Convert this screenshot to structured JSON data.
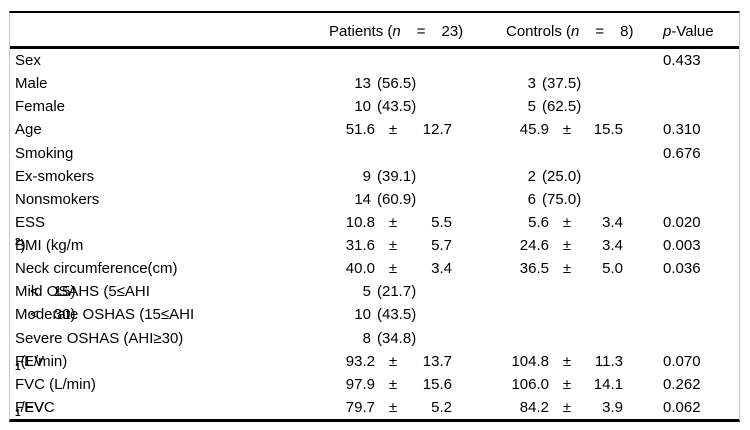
{
  "table": {
    "header": {
      "patients": {
        "prefix": "Patients (",
        "n": "n",
        "eq": "=",
        "count": "23)"
      },
      "controls": {
        "prefix": "Controls (",
        "n": "n",
        "eq": "=",
        "count": "8)"
      },
      "pvalue": {
        "p": "p",
        "suffix": "-Value"
      }
    },
    "rows": [
      {
        "label": [
          {
            "t": "Sex"
          }
        ],
        "p": "0.433"
      },
      {
        "label": [
          {
            "t": "Male"
          }
        ],
        "patients": {
          "n": "13",
          "pct": "(56.5)"
        },
        "controls": {
          "n": "3",
          "pct": "(37.5)"
        }
      },
      {
        "label": [
          {
            "t": "Female"
          }
        ],
        "patients": {
          "n": "10",
          "pct": "(43.5)"
        },
        "controls": {
          "n": "5",
          "pct": "(62.5)"
        }
      },
      {
        "label": [
          {
            "t": "Age"
          }
        ],
        "patients": {
          "mean": "51.6",
          "pm": "±",
          "sd": "12.7"
        },
        "controls": {
          "mean": "45.9",
          "pm": "±",
          "sd": "15.5"
        },
        "p": "0.310"
      },
      {
        "label": [
          {
            "t": "Smoking"
          }
        ],
        "p": "0.676"
      },
      {
        "label": [
          {
            "t": "Ex-smokers"
          }
        ],
        "patients": {
          "n": "9",
          "pct": "(39.1)"
        },
        "controls": {
          "n": "2",
          "pct": "(25.0)"
        }
      },
      {
        "label": [
          {
            "t": "Nonsmokers"
          }
        ],
        "patients": {
          "n": "14",
          "pct": "(60.9)"
        },
        "controls": {
          "n": "6",
          "pct": "(75.0)"
        }
      },
      {
        "label": [
          {
            "t": "ESS"
          }
        ],
        "patients": {
          "mean": "10.8",
          "pm": "±",
          "sd": "5.5"
        },
        "controls": {
          "mean": "5.6",
          "pm": "±",
          "sd": "3.4"
        },
        "p": "0.020"
      },
      {
        "label": [
          {
            "t": "BMI (kg/m"
          },
          {
            "t": "2",
            "s": "sup"
          },
          {
            "t": ")"
          }
        ],
        "patients": {
          "mean": "31.6",
          "pm": "±",
          "sd": "5.7"
        },
        "controls": {
          "mean": "24.6",
          "pm": "±",
          "sd": "3.4"
        },
        "p": "0.003"
      },
      {
        "label": [
          {
            "t": "Neck circumference(cm)"
          }
        ],
        "patients": {
          "mean": "40.0",
          "pm": "±",
          "sd": "3.4"
        },
        "controls": {
          "mean": "36.5",
          "pm": "±",
          "sd": "5.0"
        },
        "p": "0.036"
      },
      {
        "label": [
          {
            "t": "Mild OSAHS (5≤AHI"
          },
          {
            "t": "<",
            "s": "op"
          },
          {
            "t": "15)"
          }
        ],
        "patients": {
          "n": "5",
          "pct": "(21.7)"
        }
      },
      {
        "label": [
          {
            "t": "Moderate OSHAS (15≤AHI"
          },
          {
            "t": "<",
            "s": "op"
          },
          {
            "t": "30)"
          }
        ],
        "patients": {
          "n": "10",
          "pct": "(43.5)"
        }
      },
      {
        "label": [
          {
            "t": "Severe OSHAS (AHI≥30)"
          }
        ],
        "patients": {
          "n": "8",
          "pct": "(34.8)"
        }
      },
      {
        "label": [
          {
            "t": "FEV"
          },
          {
            "t": "1",
            "s": "sub"
          },
          {
            "t": "(L/min)"
          }
        ],
        "patients": {
          "mean": "93.2",
          "pm": "±",
          "sd": "13.7"
        },
        "controls": {
          "mean": "104.8",
          "pm": "±",
          "sd": "11.3"
        },
        "p": "0.070"
      },
      {
        "label": [
          {
            "t": "FVC (L/min)"
          }
        ],
        "patients": {
          "mean": "97.9",
          "pm": "±",
          "sd": "15.6"
        },
        "controls": {
          "mean": "106.0",
          "pm": "±",
          "sd": "14.1"
        },
        "p": "0.262"
      },
      {
        "label": [
          {
            "t": "FEV"
          },
          {
            "t": "1",
            "s": "sub"
          },
          {
            "t": "/FVC"
          }
        ],
        "patients": {
          "mean": "79.7",
          "pm": "±",
          "sd": "5.2"
        },
        "controls": {
          "mean": "84.2",
          "pm": "±",
          "sd": "3.9"
        },
        "p": "0.062"
      }
    ]
  },
  "colors": {
    "rule": "#000000",
    "side_border": "#c9c9c9",
    "text": "#000000",
    "background": "#ffffff"
  }
}
